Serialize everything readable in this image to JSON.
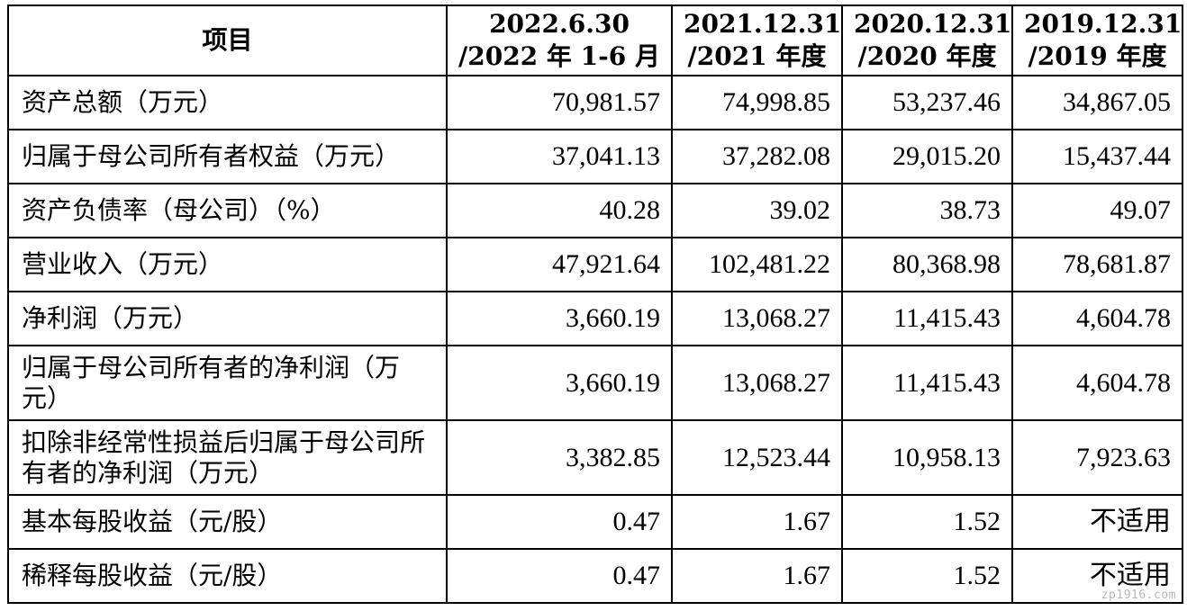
{
  "table": {
    "headers": {
      "item": "项目",
      "c1": {
        "line1": "2022.6.30",
        "line2": "/2022 年 1-6 月"
      },
      "c2": {
        "line1": "2021.12.31",
        "line2": "/2021 年度"
      },
      "c3": {
        "line1": "2020.12.31",
        "line2": "/2020 年度"
      },
      "c4": {
        "line1": "2019.12.31",
        "line2": "/2019 年度"
      }
    },
    "rows": [
      {
        "label": "资产总额（万元）",
        "v1": "70,981.57",
        "v2": "74,998.85",
        "v3": "53,237.46",
        "v4": "34,867.05"
      },
      {
        "label": "归属于母公司所有者权益（万元）",
        "v1": "37,041.13",
        "v2": "37,282.08",
        "v3": "29,015.20",
        "v4": "15,437.44"
      },
      {
        "label": "资产负债率（母公司）（%）",
        "v1": "40.28",
        "v2": "39.02",
        "v3": "38.73",
        "v4": "49.07"
      },
      {
        "label": "营业收入（万元）",
        "v1": "47,921.64",
        "v2": "102,481.22",
        "v3": "80,368.98",
        "v4": "78,681.87"
      },
      {
        "label": "净利润（万元）",
        "v1": "3,660.19",
        "v2": "13,068.27",
        "v3": "11,415.43",
        "v4": "4,604.78"
      },
      {
        "label": "归属于母公司所有者的净利润（万元）",
        "v1": "3,660.19",
        "v2": "13,068.27",
        "v3": "11,415.43",
        "v4": "4,604.78"
      },
      {
        "label": "扣除非经常性损益后归属于母公司所有者的净利润（万元）",
        "v1": "3,382.85",
        "v2": "12,523.44",
        "v3": "10,958.13",
        "v4": "7,923.63"
      },
      {
        "label": "基本每股收益（元/股）",
        "v1": "0.47",
        "v2": "1.67",
        "v3": "1.52",
        "v4": "不适用"
      },
      {
        "label": "稀释每股收益（元/股）",
        "v1": "0.47",
        "v2": "1.67",
        "v3": "1.52",
        "v4": "不适用"
      }
    ]
  },
  "watermark": "zp1916.com"
}
